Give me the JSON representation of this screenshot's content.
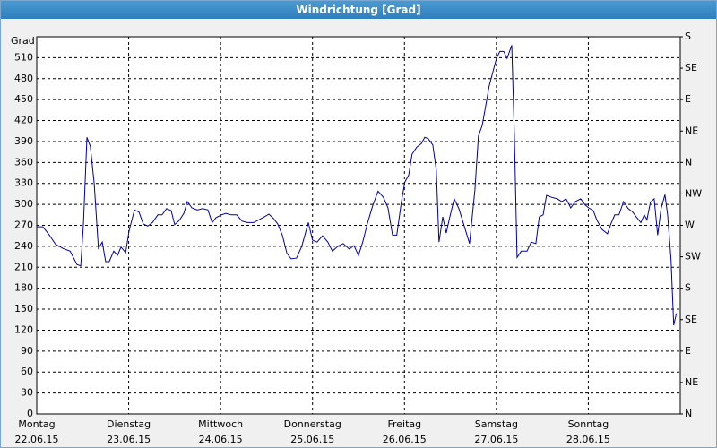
{
  "chart_data": {
    "type": "line",
    "title": "Windrichtung [Grad]",
    "y_label": "Grad",
    "xlim": [
      0,
      168
    ],
    "ylim": [
      0,
      540
    ],
    "yticks": [
      0,
      30,
      60,
      90,
      120,
      150,
      180,
      210,
      240,
      270,
      300,
      330,
      360,
      390,
      420,
      450,
      480,
      510
    ],
    "y2lim": [
      0,
      540
    ],
    "y2ticks": [
      {
        "value": 0,
        "label": "N"
      },
      {
        "value": 45,
        "label": "NE"
      },
      {
        "value": 90,
        "label": "E"
      },
      {
        "value": 135,
        "label": "SE"
      },
      {
        "value": 180,
        "label": "S"
      },
      {
        "value": 225,
        "label": "SW"
      },
      {
        "value": 270,
        "label": "W"
      },
      {
        "value": 315,
        "label": "NW"
      },
      {
        "value": 360,
        "label": "N"
      },
      {
        "value": 405,
        "label": "NE"
      },
      {
        "value": 450,
        "label": "E"
      },
      {
        "value": 495,
        "label": "SE"
      },
      {
        "value": 540,
        "label": "S"
      }
    ],
    "xticks": [
      {
        "value": 0,
        "label": [
          "Montag",
          "22.06.15"
        ]
      },
      {
        "value": 24,
        "label": [
          "Dienstag",
          "23.06.15"
        ]
      },
      {
        "value": 48,
        "label": [
          "Mittwoch",
          "24.06.15"
        ]
      },
      {
        "value": 72,
        "label": [
          "Donnerstag",
          "25.06.15"
        ]
      },
      {
        "value": 96,
        "label": [
          "Freitag",
          "26.06.15"
        ]
      },
      {
        "value": 120,
        "label": [
          "Samstag",
          "27.06.15"
        ]
      },
      {
        "value": 144,
        "label": [
          "Sonntag",
          "28.06.15"
        ]
      }
    ],
    "grid": true,
    "series": [
      {
        "color": "#0000a0",
        "x": [
          0,
          1.6,
          3.3,
          4.9,
          6.8,
          8.7,
          10.5,
          11.5,
          12.2,
          13.1,
          14,
          15,
          16.1,
          17.1,
          18,
          18.9,
          20.1,
          21.1,
          22,
          23.2,
          24.1,
          25.5,
          26.7,
          27.8,
          29,
          30.2,
          31.6,
          32.7,
          33.9,
          35.1,
          36,
          37.2,
          38.4,
          39.3,
          40.5,
          41.9,
          43.3,
          44.7,
          45.8,
          46.8,
          48.2,
          49.4,
          50.8,
          52.2,
          53.6,
          55,
          56.6,
          58,
          59.4,
          60.6,
          61.8,
          62.9,
          64.1,
          65.3,
          66.4,
          67.8,
          69.2,
          70.9,
          72,
          73.2,
          74.6,
          76,
          77.2,
          78.6,
          80,
          81.6,
          82.8,
          84,
          85.1,
          86.3,
          87.7,
          89.1,
          90.5,
          91.7,
          92.9,
          94,
          95.2,
          96.1,
          97.1,
          98,
          99.2,
          100.4,
          101.3,
          102.2,
          103.4,
          104.3,
          105,
          106,
          106.9,
          107.8,
          109,
          110.2,
          111.6,
          113,
          114.4,
          115.3,
          116.3,
          117.2,
          118.1,
          119.1,
          120,
          120.9,
          121.9,
          122.8,
          124,
          124.7,
          125.4,
          126.5,
          128,
          129.1,
          130.3,
          131.2,
          132.2,
          133.1,
          134.5,
          135.9,
          137.1,
          138.2,
          139.4,
          140.6,
          142,
          143.2,
          144.1,
          145.3,
          146.2,
          147.6,
          149,
          149.9,
          150.9,
          152,
          153.2,
          154.4,
          155.6,
          156.5,
          157.7,
          158.6,
          159.3,
          160.2,
          161.2,
          162.1,
          163,
          164,
          164.7,
          165.6,
          166.3,
          167
        ],
        "values": [
          268,
          268,
          256,
          243,
          237,
          233,
          214,
          212,
          272,
          396,
          383,
          330,
          237,
          246,
          218,
          218,
          233,
          227,
          239,
          231,
          262,
          292,
          289,
          272,
          269,
          274,
          285,
          285,
          294,
          291,
          271,
          277,
          287,
          304,
          295,
          292,
          294,
          292,
          274,
          281,
          285,
          287,
          285,
          285,
          276,
          274,
          274,
          278,
          282,
          286,
          280,
          272,
          256,
          230,
          222,
          223,
          240,
          274,
          249,
          246,
          255,
          246,
          233,
          240,
          244,
          236,
          241,
          227,
          246,
          272,
          298,
          319,
          310,
          295,
          256,
          256,
          304,
          332,
          342,
          372,
          382,
          387,
          396,
          394,
          385,
          349,
          246,
          282,
          259,
          281,
          308,
          294,
          269,
          244,
          321,
          398,
          413,
          441,
          469,
          490,
          509,
          519,
          519,
          509,
          528,
          400,
          224,
          233,
          233,
          246,
          244,
          282,
          285,
          313,
          310,
          308,
          304,
          308,
          295,
          304,
          308,
          299,
          295,
          291,
          278,
          264,
          258,
          272,
          285,
          285,
          304,
          294,
          289,
          282,
          274,
          285,
          278,
          303,
          308,
          256,
          294,
          314,
          285,
          221,
          127,
          144
        ]
      }
    ]
  }
}
